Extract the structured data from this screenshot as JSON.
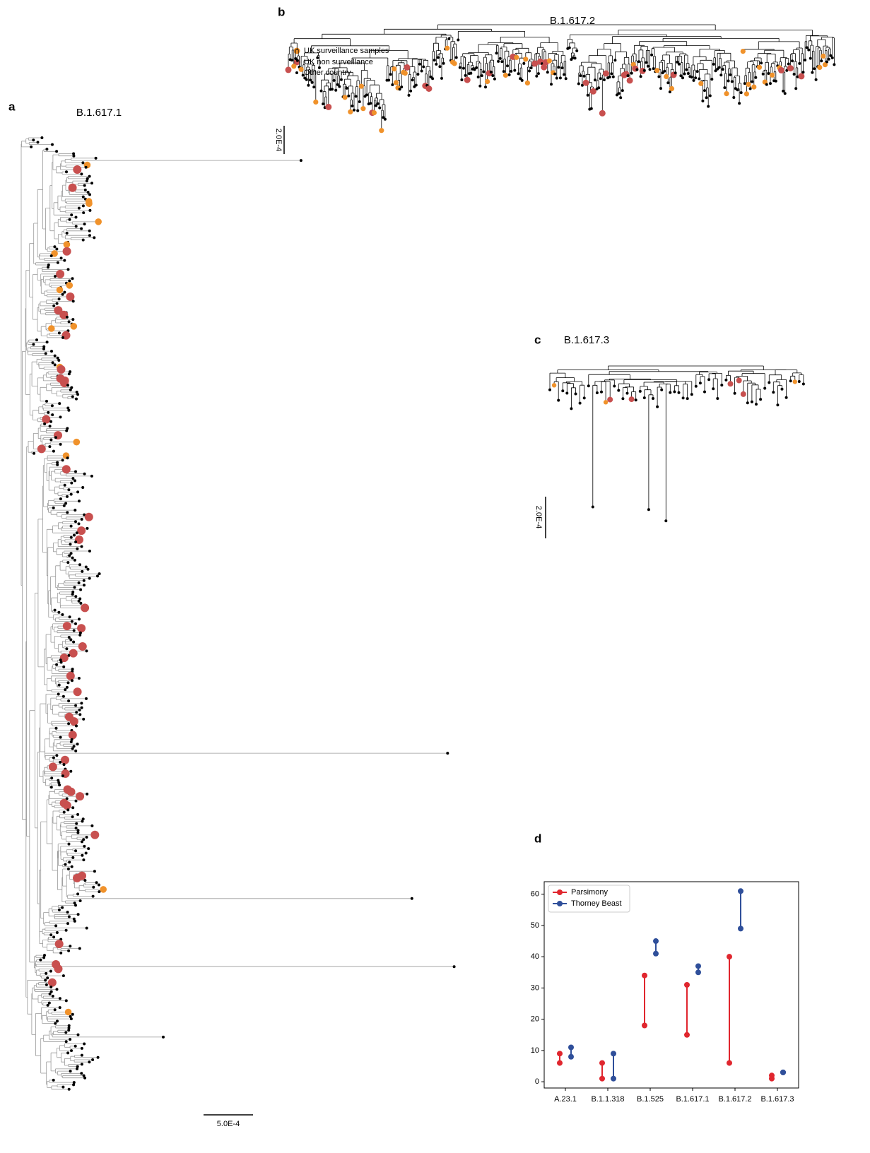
{
  "panels": {
    "a": {
      "label": "a",
      "title": "B.1.617.1",
      "scale": "5.0E-4"
    },
    "b": {
      "label": "b",
      "title": "B.1.617.2",
      "scale": "2.0E-4",
      "legend": [
        "UK surveillance samples",
        "UK non surveillance",
        "Other country"
      ]
    },
    "c": {
      "label": "c",
      "title": "B.1.617.3",
      "scale": "2.0E-4"
    },
    "d": {
      "label": "d"
    }
  },
  "chart_data": {
    "type": "range",
    "categories": [
      "A.23.1",
      "B.1.1.318",
      "B.1.525",
      "B.1.617.1",
      "B.1.617.2",
      "B.1.617.3"
    ],
    "series": [
      {
        "name": "Parsimony",
        "color": "#e0262e",
        "low": [
          6,
          1,
          18,
          15,
          6,
          1
        ],
        "high": [
          9,
          6,
          34,
          31,
          40,
          2
        ]
      },
      {
        "name": "Thorney Beast",
        "color": "#2f4f9a",
        "low": [
          8,
          1,
          41,
          35,
          49,
          3
        ],
        "high": [
          11,
          9,
          45,
          37,
          61,
          3
        ]
      }
    ],
    "ylim": [
      -2,
      64
    ],
    "yticks": [
      0,
      10,
      20,
      30,
      40,
      50,
      60
    ],
    "legend": "upper left"
  }
}
